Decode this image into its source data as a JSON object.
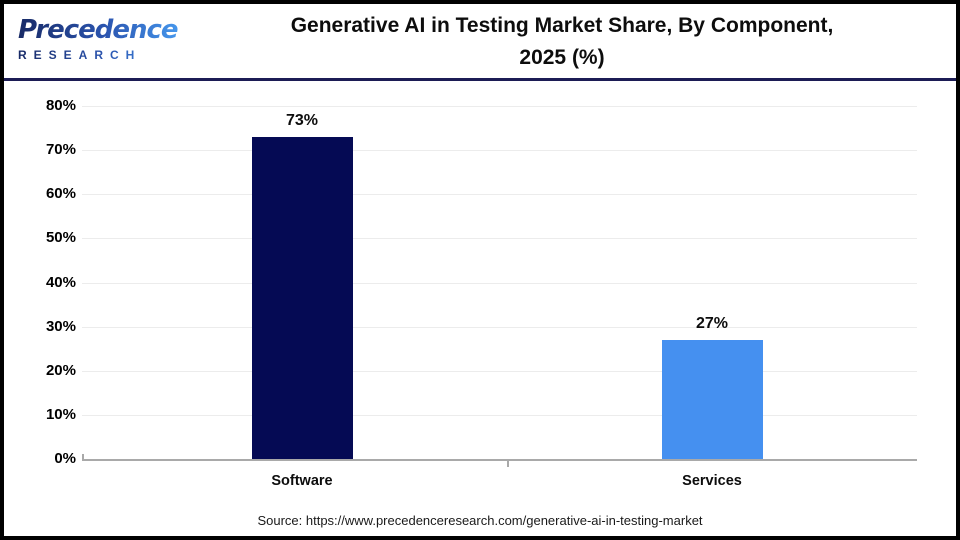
{
  "header": {
    "logo": {
      "primary": "Precedence",
      "secondary": "RESEARCH",
      "brand_color_dark": "#182a66",
      "brand_color_light": "#4596ec"
    },
    "title_line1": "Generative AI in Testing Market Share, By Component,",
    "title_line2": "2025 (%)"
  },
  "chart_data": {
    "type": "bar",
    "title": "Generative AI in Testing Market Share, By Component, 2025 (%)",
    "categories": [
      "Software",
      "Services"
    ],
    "values": [
      73,
      27
    ],
    "value_labels": [
      "73%",
      "27%"
    ],
    "bar_colors": [
      "#050a54",
      "#4590f0"
    ],
    "xlabel": "",
    "ylabel": "",
    "ylim": [
      0,
      80
    ],
    "ytick_step": 10,
    "ytick_labels": [
      "0%",
      "10%",
      "20%",
      "30%",
      "40%",
      "50%",
      "60%",
      "70%",
      "80%"
    ],
    "grid": true,
    "gridline_color": "#ececec",
    "axis_color": "#a9a9a9",
    "legend": null
  },
  "footer": {
    "source": "Source: https://www.precedenceresearch.com/generative-ai-in-testing-market"
  }
}
